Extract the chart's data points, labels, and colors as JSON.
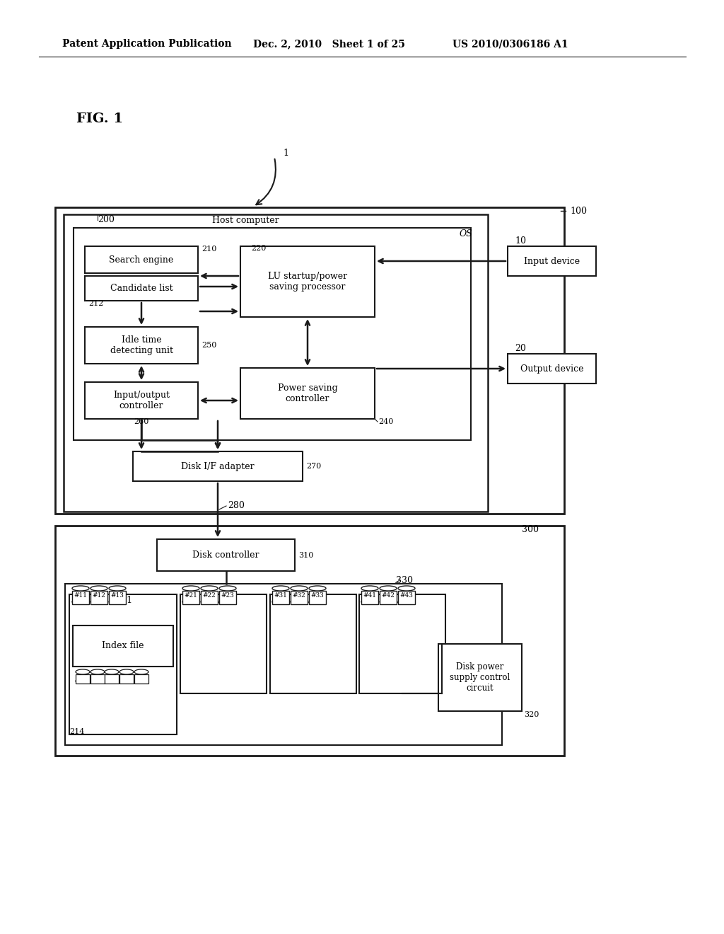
{
  "bg_color": "#ffffff",
  "header_left": "Patent Application Publication",
  "header_mid": "Dec. 2, 2010   Sheet 1 of 25",
  "header_right": "US 2010/0306186 A1",
  "fig_label": "FIG. 1",
  "box_search_engine": "Search engine",
  "box_candidate_list": "Candidate list",
  "box_lu_startup": "LU startup/power\nsaving processor",
  "box_idle_time": "Idle time\ndetecting unit",
  "box_io_controller": "Input/output\ncontroller",
  "box_power_saving": "Power saving\ncontroller",
  "box_disk_if": "Disk I/F adapter",
  "box_disk_controller": "Disk controller",
  "box_input_device": "Input device",
  "box_output_device": "Output device",
  "box_index_file": "Index file",
  "box_disk_power": "Disk power\nsupply control\ncircuit",
  "box_host_computer": "Host computer",
  "box_os": "OS",
  "disk_labels": [
    "#11",
    "#12",
    "#13",
    "#21",
    "#22",
    "#23",
    "#31",
    "#32",
    "#33",
    "#41",
    "#42",
    "#43"
  ]
}
